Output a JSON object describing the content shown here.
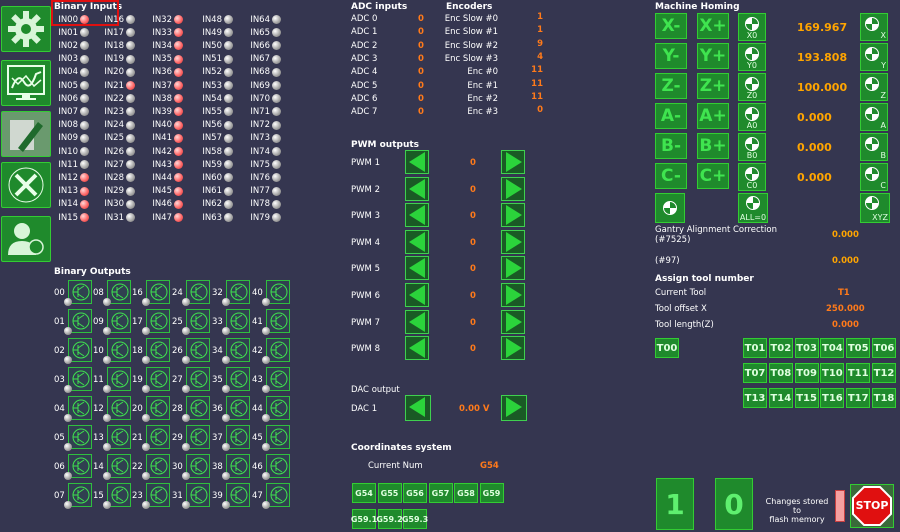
{
  "sidebar": {
    "items": [
      {
        "name": "settings-gear-icon"
      },
      {
        "name": "graph-monitor-icon"
      },
      {
        "name": "pencil-edit-icon"
      },
      {
        "name": "tools-icon"
      },
      {
        "name": "user-icon"
      }
    ]
  },
  "binary_inputs": {
    "title": "Binary Inputs",
    "columns": [
      [
        {
          "label": "IN00",
          "state": "red"
        },
        {
          "label": "IN01",
          "state": "gray"
        },
        {
          "label": "IN02",
          "state": "gray"
        },
        {
          "label": "IN03",
          "state": "gray"
        },
        {
          "label": "IN04",
          "state": "gray"
        },
        {
          "label": "IN05",
          "state": "gray"
        },
        {
          "label": "IN06",
          "state": "gray"
        },
        {
          "label": "IN07",
          "state": "gray"
        },
        {
          "label": "IN08",
          "state": "gray"
        },
        {
          "label": "IN09",
          "state": "gray"
        },
        {
          "label": "IN10",
          "state": "gray"
        },
        {
          "label": "IN11",
          "state": "gray"
        },
        {
          "label": "IN12",
          "state": "red"
        },
        {
          "label": "IN13",
          "state": "red"
        },
        {
          "label": "IN14",
          "state": "red"
        },
        {
          "label": "IN15",
          "state": "red"
        }
      ],
      [
        {
          "label": "IN16",
          "state": "gray"
        },
        {
          "label": "IN17",
          "state": "gray"
        },
        {
          "label": "IN18",
          "state": "gray"
        },
        {
          "label": "IN19",
          "state": "gray"
        },
        {
          "label": "IN20",
          "state": "gray"
        },
        {
          "label": "IN21",
          "state": "red"
        },
        {
          "label": "IN22",
          "state": "gray"
        },
        {
          "label": "IN23",
          "state": "gray"
        },
        {
          "label": "IN24",
          "state": "gray"
        },
        {
          "label": "IN25",
          "state": "gray"
        },
        {
          "label": "IN26",
          "state": "gray"
        },
        {
          "label": "IN27",
          "state": "gray"
        },
        {
          "label": "IN28",
          "state": "gray"
        },
        {
          "label": "IN29",
          "state": "gray"
        },
        {
          "label": "IN30",
          "state": "gray"
        },
        {
          "label": "IN31",
          "state": "gray"
        }
      ],
      [
        {
          "label": "IN32",
          "state": "red"
        },
        {
          "label": "IN33",
          "state": "red"
        },
        {
          "label": "IN34",
          "state": "red"
        },
        {
          "label": "IN35",
          "state": "red"
        },
        {
          "label": "IN36",
          "state": "red"
        },
        {
          "label": "IN37",
          "state": "red"
        },
        {
          "label": "IN38",
          "state": "red"
        },
        {
          "label": "IN39",
          "state": "red"
        },
        {
          "label": "IN40",
          "state": "red"
        },
        {
          "label": "IN41",
          "state": "red"
        },
        {
          "label": "IN42",
          "state": "red"
        },
        {
          "label": "IN43",
          "state": "red"
        },
        {
          "label": "IN44",
          "state": "red"
        },
        {
          "label": "IN45",
          "state": "red"
        },
        {
          "label": "IN46",
          "state": "red"
        },
        {
          "label": "IN47",
          "state": "red"
        }
      ],
      [
        {
          "label": "IN48",
          "state": "gray"
        },
        {
          "label": "IN49",
          "state": "gray"
        },
        {
          "label": "IN50",
          "state": "gray"
        },
        {
          "label": "IN51",
          "state": "gray"
        },
        {
          "label": "IN52",
          "state": "gray"
        },
        {
          "label": "IN53",
          "state": "gray"
        },
        {
          "label": "IN54",
          "state": "gray"
        },
        {
          "label": "IN55",
          "state": "gray"
        },
        {
          "label": "IN56",
          "state": "gray"
        },
        {
          "label": "IN57",
          "state": "gray"
        },
        {
          "label": "IN58",
          "state": "gray"
        },
        {
          "label": "IN59",
          "state": "gray"
        },
        {
          "label": "IN60",
          "state": "gray"
        },
        {
          "label": "IN61",
          "state": "gray"
        },
        {
          "label": "IN62",
          "state": "gray"
        },
        {
          "label": "IN63",
          "state": "gray"
        }
      ],
      [
        {
          "label": "IN64",
          "state": "gray"
        },
        {
          "label": "IN65",
          "state": "gray"
        },
        {
          "label": "IN66",
          "state": "gray"
        },
        {
          "label": "IN67",
          "state": "gray"
        },
        {
          "label": "IN68",
          "state": "gray"
        },
        {
          "label": "IN69",
          "state": "gray"
        },
        {
          "label": "IN70",
          "state": "gray"
        },
        {
          "label": "IN71",
          "state": "gray"
        },
        {
          "label": "IN72",
          "state": "gray"
        },
        {
          "label": "IN73",
          "state": "gray"
        },
        {
          "label": "IN74",
          "state": "gray"
        },
        {
          "label": "IN75",
          "state": "gray"
        },
        {
          "label": "IN76",
          "state": "gray"
        },
        {
          "label": "IN77",
          "state": "gray"
        },
        {
          "label": "IN78",
          "state": "gray"
        },
        {
          "label": "IN79",
          "state": "gray"
        }
      ]
    ]
  },
  "binary_outputs": {
    "title": "Binary Outputs",
    "rows": [
      [
        "00",
        "08",
        "16",
        "24",
        "32",
        "40"
      ],
      [
        "01",
        "09",
        "17",
        "25",
        "33",
        "41"
      ],
      [
        "02",
        "10",
        "18",
        "26",
        "34",
        "42"
      ],
      [
        "03",
        "11",
        "19",
        "27",
        "35",
        "43"
      ],
      [
        "04",
        "12",
        "20",
        "28",
        "36",
        "44"
      ],
      [
        "05",
        "13",
        "21",
        "29",
        "37",
        "45"
      ],
      [
        "06",
        "14",
        "22",
        "30",
        "38",
        "46"
      ],
      [
        "07",
        "15",
        "23",
        "31",
        "39",
        "47"
      ]
    ]
  },
  "adc": {
    "title": "ADC inputs",
    "items": [
      {
        "label": "ADC 0",
        "value": "0"
      },
      {
        "label": "ADC 1",
        "value": "0"
      },
      {
        "label": "ADC 2",
        "value": "0"
      },
      {
        "label": "ADC 3",
        "value": "0"
      },
      {
        "label": "ADC 4",
        "value": "0"
      },
      {
        "label": "ADC 5",
        "value": "0"
      },
      {
        "label": "ADC 6",
        "value": "0"
      },
      {
        "label": "ADC 7",
        "value": "0"
      }
    ]
  },
  "encoders": {
    "title": "Encoders",
    "items": [
      {
        "label": "Enc Slow #0",
        "value": "1"
      },
      {
        "label": "Enc Slow #1",
        "value": "1"
      },
      {
        "label": "Enc Slow #2",
        "value": "9"
      },
      {
        "label": "Enc Slow #3",
        "value": "4"
      },
      {
        "label": "Enc #0",
        "value": "11"
      },
      {
        "label": "Enc #1",
        "value": "11"
      },
      {
        "label": "Enc #2",
        "value": "11"
      },
      {
        "label": "Enc #3",
        "value": "0"
      }
    ]
  },
  "pwm": {
    "title": "PWM outputs",
    "items": [
      {
        "label": "PWM 1",
        "value": "0"
      },
      {
        "label": "PWM 2",
        "value": "0"
      },
      {
        "label": "PWM 3",
        "value": "0"
      },
      {
        "label": "PWM 4",
        "value": "0"
      },
      {
        "label": "PWM 5",
        "value": "0"
      },
      {
        "label": "PWM 6",
        "value": "0"
      },
      {
        "label": "PWM 7",
        "value": "0"
      },
      {
        "label": "PWM 8",
        "value": "0"
      }
    ]
  },
  "dac": {
    "title": "DAC output",
    "label": "DAC 1",
    "value": "0.00 V"
  },
  "coords": {
    "title": "Coordinates system",
    "current_label": "Current Num",
    "current_value": "G54",
    "buttons": [
      "G54",
      "G55",
      "G56",
      "G57",
      "G58",
      "G59",
      "G59.1",
      "G59.2",
      "G59.3"
    ]
  },
  "homing": {
    "title": "Machine Homing",
    "axes": [
      {
        "minus": "X-",
        "plus": "X+",
        "home": "X0",
        "value": "169.967",
        "home_axis": "X"
      },
      {
        "minus": "Y-",
        "plus": "Y+",
        "home": "Y0",
        "value": "193.808",
        "home_axis": "Y"
      },
      {
        "minus": "Z-",
        "plus": "Z+",
        "home": "Z0",
        "value": "100.000",
        "home_axis": "Z"
      },
      {
        "minus": "A-",
        "plus": "A+",
        "home": "A0",
        "value": "0.000",
        "home_axis": "A"
      },
      {
        "minus": "B-",
        "plus": "B+",
        "home": "B0",
        "value": "0.000",
        "home_axis": "B"
      },
      {
        "minus": "C-",
        "plus": "C+",
        "home": "C0",
        "value": "0.000",
        "home_axis": "C"
      }
    ],
    "all_label": "ALL=0",
    "xyz_label": "XYZ"
  },
  "gantry": {
    "label": "Gantry Alignment Correction",
    "sub": "(#7525)",
    "value": "0.000",
    "p97_label": "(#97)",
    "p97_value": "0.000"
  },
  "tool": {
    "title": "Assign tool number",
    "current_label": "Current Tool",
    "current_value": "T1",
    "offset_label": "Tool offset X",
    "offset_value": "250.000",
    "length_label": "Tool length(Z)",
    "length_value": "0.000",
    "t00": "T00",
    "buttons": [
      [
        "T01",
        "T02",
        "T03",
        "T04",
        "T05",
        "T06"
      ],
      [
        "T07",
        "T08",
        "T09",
        "T10",
        "T11",
        "T12"
      ],
      [
        "T13",
        "T14",
        "T15",
        "T16",
        "T17",
        "T18"
      ]
    ]
  },
  "bottom": {
    "one": "1",
    "zero": "0",
    "flash_text_1": "Changes stored to",
    "flash_text_2": "flash memory",
    "stop": "STOP"
  },
  "colors": {
    "background": "#353650",
    "accent_green": "#1f8a2c",
    "value_orange": "#ff7a1a",
    "value_yellow": "#ffa500",
    "highlight_red": "#e01010"
  }
}
